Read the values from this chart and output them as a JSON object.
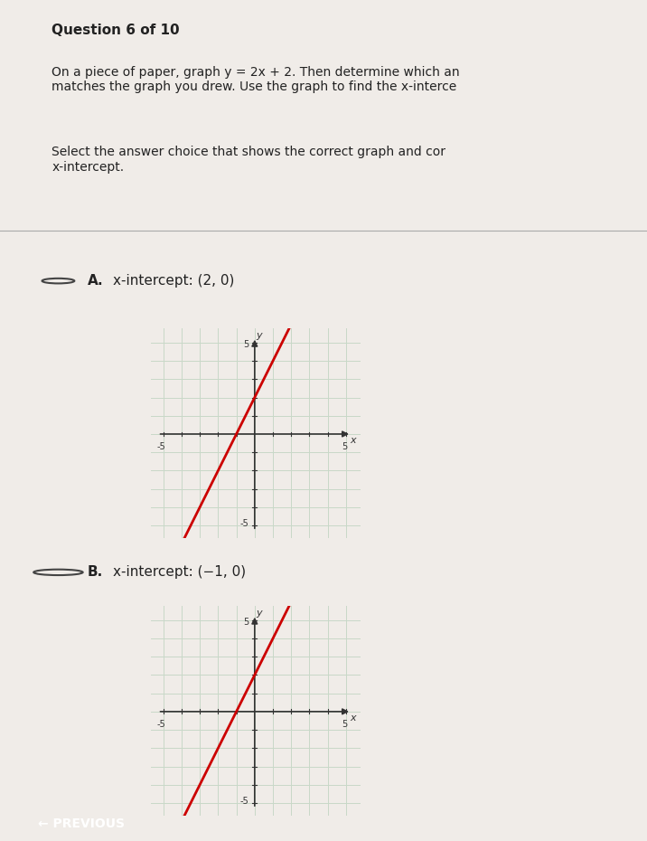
{
  "question_header": "Question 6 of 10",
  "question_text1": "On a piece of paper, graph y = 2x + 2. Then determine which an",
  "question_text2": "matches the graph you drew. Use the graph to find the x-interce",
  "question_text3": "Select the answer choice that shows the correct graph and cor",
  "question_text4": "x-intercept.",
  "option_A_label": "A.",
  "option_A_text": "x-intercept: (2, 0)",
  "option_B_label": "B.",
  "option_B_text": "x-intercept: (−1, 0)",
  "slope": 2,
  "intercept_A": 2,
  "intercept_B": 2,
  "xlim": [
    -5,
    5
  ],
  "ylim": [
    -5,
    5
  ],
  "grid_color": "#c8d8c8",
  "axis_color": "#333333",
  "line_color": "#cc0000",
  "bg_color": "#d8e8d8",
  "graph_bg": "#d8e8d8",
  "page_bg": "#f0ece8",
  "radio_color": "#333333",
  "previous_btn_color": "#4a90d9",
  "previous_btn_text": "← PREVIOUS"
}
